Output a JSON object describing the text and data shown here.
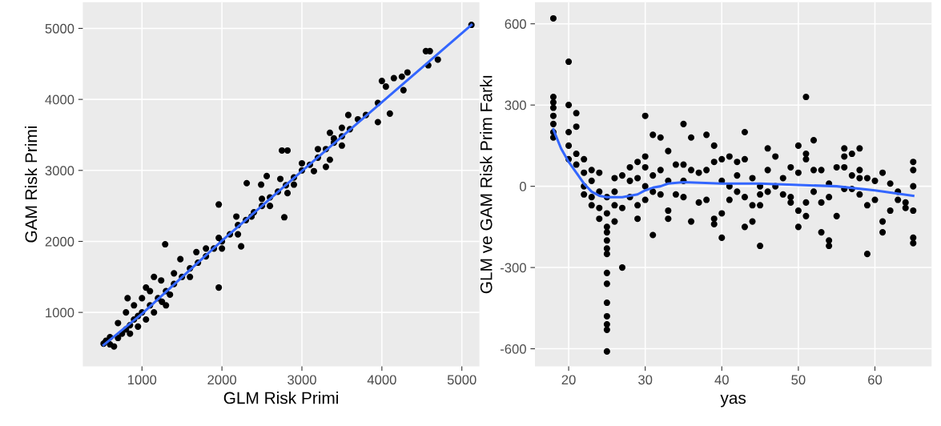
{
  "chart_data": [
    {
      "type": "scatter",
      "xlabel": "GLM Risk Primi",
      "ylabel": "GAM Risk Primi",
      "xlim": [
        260,
        5220
      ],
      "ylim": [
        240,
        5370
      ],
      "xticks": [
        1000,
        2000,
        3000,
        4000,
        5000
      ],
      "yticks": [
        1000,
        2000,
        3000,
        4000,
        5000
      ],
      "grid": true,
      "series": [
        {
          "color": "#000000",
          "marker": "circle",
          "x": [
            5120,
            4550,
            4600,
            4700,
            4580,
            4320,
            4150,
            4250,
            4270,
            4000,
            4050,
            3950,
            4100,
            3950,
            3580,
            3700,
            3500,
            3350,
            3400,
            2750,
            2820,
            3300,
            3150,
            2560,
            2730,
            2310,
            2490,
            2820,
            1960,
            2180,
            2370,
            2780,
            1960,
            1290,
            2240,
            1680,
            1480,
            1960,
            1240,
            1050,
            820,
            600,
            650,
            700,
            750,
            800,
            850,
            900,
            950,
            1000,
            1100,
            1200,
            1300,
            1400,
            1500,
            1600,
            1700,
            1800,
            1900,
            2000,
            2100,
            2200,
            2300,
            2400,
            2500,
            2600,
            2700,
            2800,
            2900,
            3000,
            3100,
            3200,
            3300,
            3400,
            3500,
            3600,
            3800,
            700,
            800,
            900,
            1000,
            1100,
            850,
            950,
            1050,
            1150,
            1250,
            1300,
            1400,
            1600,
            1800,
            2000,
            2200,
            2500,
            2600,
            2900,
            3000,
            3200,
            3350,
            3500,
            600,
            550,
            520,
            1150,
            1350
          ],
          "values": [
            5050,
            4680,
            4680,
            4560,
            4480,
            4380,
            4300,
            4320,
            4130,
            4260,
            4180,
            3950,
            3800,
            3680,
            3780,
            3720,
            3350,
            3530,
            3450,
            3280,
            3280,
            3050,
            2990,
            2920,
            2880,
            2820,
            2800,
            2680,
            2520,
            2350,
            2350,
            2340,
            2050,
            1960,
            1930,
            1850,
            1750,
            1350,
            1450,
            1350,
            1200,
            550,
            520,
            640,
            700,
            760,
            820,
            900,
            950,
            1000,
            1100,
            1200,
            1300,
            1400,
            1500,
            1620,
            1700,
            1790,
            1900,
            2000,
            2100,
            2230,
            2300,
            2410,
            2500,
            2620,
            2700,
            2790,
            2900,
            3000,
            3080,
            3180,
            3300,
            3390,
            3480,
            3580,
            3780,
            850,
            1000,
            1100,
            1200,
            1300,
            700,
            800,
            900,
            1000,
            1150,
            1100,
            1550,
            1500,
            1900,
            1900,
            2100,
            2600,
            2500,
            2800,
            3100,
            3300,
            3150,
            3600,
            650,
            600,
            560,
            1500,
            1250
          ]
        },
        {
          "type": "line",
          "color": "#3366ff",
          "x": [
            520,
            1000,
            2000,
            3000,
            4000,
            5120
          ],
          "values": [
            540,
            980,
            2010,
            2990,
            3960,
            5050
          ]
        }
      ]
    },
    {
      "type": "scatter",
      "xlabel": "yas",
      "ylabel": "GLM ve GAM Risk Prim Farkı",
      "xlim": [
        15.6,
        67.4
      ],
      "ylim": [
        -665,
        680
      ],
      "xticks": [
        20,
        30,
        40,
        50,
        60
      ],
      "yticks": [
        -600,
        -300,
        0,
        300,
        600
      ],
      "grid": true,
      "series": [
        {
          "color": "#000000",
          "marker": "circle",
          "x": [
            18,
            18,
            18,
            18,
            18,
            18,
            18,
            18,
            20,
            20,
            20,
            20,
            20,
            21,
            21,
            21,
            21,
            22,
            22,
            22,
            22,
            23,
            23,
            23,
            23,
            24,
            24,
            24,
            24,
            25,
            25,
            25,
            25,
            25,
            25,
            25,
            25,
            25,
            25,
            25,
            25,
            25,
            25,
            26,
            26,
            26,
            26,
            27,
            27,
            27,
            28,
            28,
            28,
            29,
            29,
            29,
            29,
            30,
            30,
            30,
            30,
            30,
            31,
            31,
            31,
            31,
            32,
            32,
            32,
            33,
            33,
            33,
            33,
            34,
            34,
            35,
            35,
            35,
            35,
            36,
            36,
            36,
            37,
            37,
            38,
            38,
            38,
            39,
            39,
            39,
            39,
            40,
            40,
            40,
            40,
            41,
            41,
            41,
            42,
            42,
            42,
            43,
            43,
            43,
            43,
            44,
            44,
            44,
            45,
            45,
            45,
            45,
            46,
            46,
            46,
            47,
            47,
            48,
            48,
            49,
            49,
            49,
            50,
            50,
            50,
            50,
            51,
            51,
            51,
            51,
            51,
            52,
            52,
            52,
            53,
            53,
            53,
            54,
            54,
            54,
            54,
            55,
            55,
            56,
            56,
            56,
            56,
            57,
            57,
            57,
            58,
            58,
            58,
            58,
            59,
            59,
            59,
            60,
            60,
            61,
            61,
            61,
            62,
            62,
            63,
            63,
            64,
            64,
            65,
            65,
            65,
            65,
            65,
            65
          ],
          "values": [
            620,
            330,
            310,
            290,
            260,
            230,
            200,
            180,
            460,
            300,
            200,
            150,
            100,
            270,
            220,
            120,
            80,
            100,
            50,
            0,
            -30,
            60,
            20,
            -40,
            -70,
            50,
            -20,
            -80,
            -120,
            -170,
            -200,
            -230,
            -250,
            -320,
            -360,
            -430,
            -480,
            -510,
            -530,
            -610,
            -100,
            -40,
            -150,
            -130,
            -70,
            -20,
            30,
            -300,
            40,
            -80,
            70,
            20,
            -40,
            90,
            -70,
            -120,
            30,
            260,
            110,
            70,
            0,
            -50,
            190,
            -180,
            40,
            -20,
            180,
            60,
            -30,
            130,
            -90,
            -120,
            20,
            80,
            -30,
            230,
            80,
            20,
            -40,
            180,
            60,
            -130,
            50,
            -60,
            190,
            60,
            -50,
            150,
            90,
            -120,
            -140,
            100,
            20,
            -100,
            -190,
            110,
            0,
            -50,
            90,
            40,
            -20,
            200,
            100,
            -150,
            -40,
            30,
            -70,
            -130,
            -70,
            -220,
            -30,
            0,
            140,
            60,
            -20,
            110,
            0,
            30,
            -30,
            70,
            -40,
            -60,
            150,
            50,
            -150,
            -90,
            330,
            120,
            100,
            -60,
            -110,
            170,
            60,
            -20,
            60,
            -60,
            -170,
            10,
            -40,
            -200,
            -220,
            70,
            -110,
            140,
            110,
            70,
            -10,
            120,
            40,
            -10,
            140,
            60,
            30,
            -30,
            30,
            -250,
            -70,
            20,
            -50,
            50,
            -130,
            -170,
            10,
            -90,
            -50,
            -20,
            -60,
            -80,
            90,
            60,
            -90,
            -190,
            -210,
            0
          ]
        },
        {
          "type": "line",
          "color": "#3366ff",
          "x": [
            18,
            19,
            20,
            21,
            22,
            23,
            24,
            25,
            26,
            27,
            28,
            29,
            30,
            31,
            32,
            33,
            35,
            40,
            45,
            50,
            55,
            60,
            65
          ],
          "values": [
            210,
            140,
            90,
            50,
            10,
            -20,
            -35,
            -40,
            -40,
            -40,
            -35,
            -30,
            -15,
            -5,
            0,
            10,
            15,
            10,
            10,
            5,
            0,
            -15,
            -35
          ]
        }
      ]
    }
  ]
}
